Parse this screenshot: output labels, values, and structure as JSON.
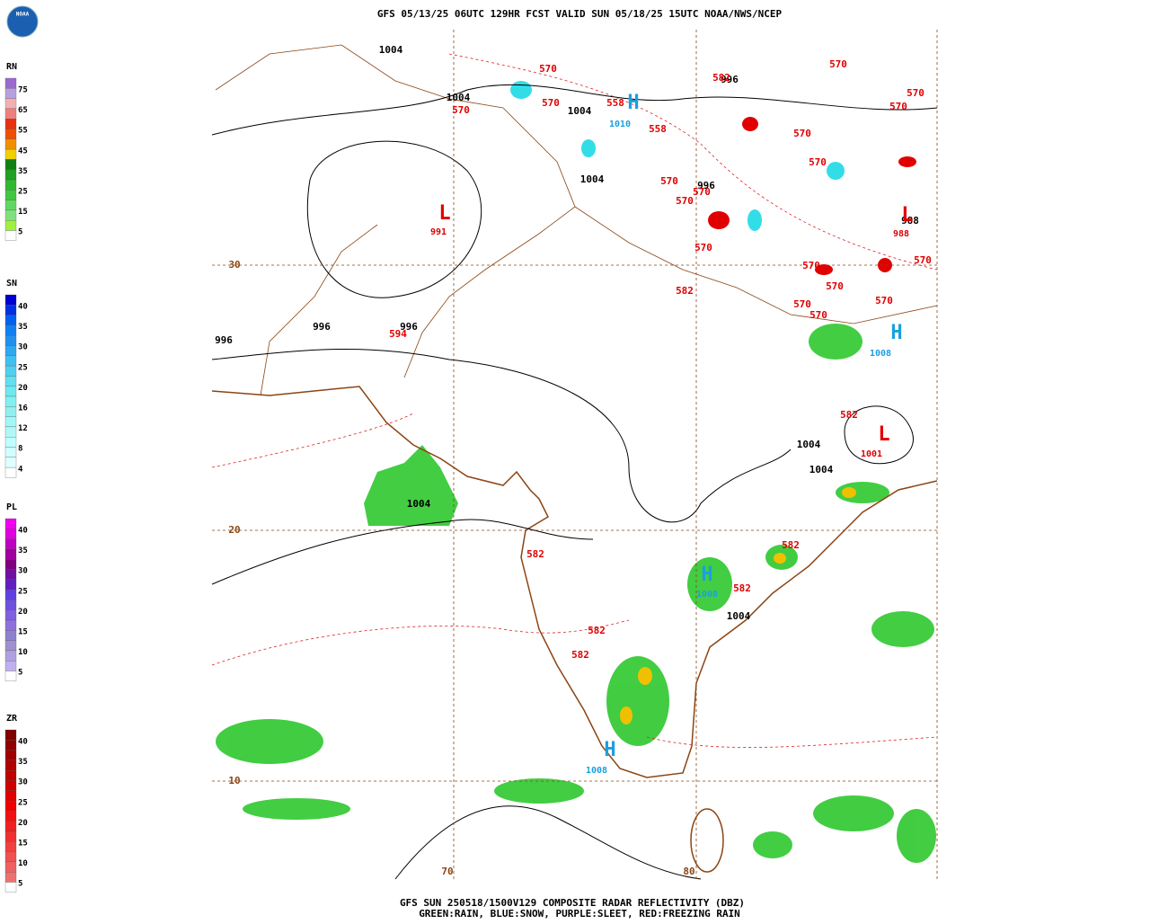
{
  "header": {
    "title": "GFS 05/13/25 06UTC 129HR FCST VALID SUN 05/18/25 15UTC NOAA/NWS/NCEP",
    "logo": "NOAA"
  },
  "footer": {
    "line1": "GFS SUN 250518/1500V129 COMPOSITE RADAR REFLECTIVITY (DBZ)",
    "line2": "GREEN:RAIN, BLUE:SNOW, PURPLE:SLEET, RED:FREEZING RAIN"
  },
  "legend": [
    {
      "title": "RN",
      "labels": [
        "75",
        "65",
        "55",
        "45",
        "35",
        "25",
        "15",
        "5"
      ]
    },
    {
      "title": "SN",
      "labels": [
        "40",
        "35",
        "30",
        "25",
        "20",
        "16",
        "12",
        "8",
        "4"
      ]
    },
    {
      "title": "PL",
      "labels": [
        "40",
        "35",
        "30",
        "25",
        "20",
        "15",
        "10",
        "5"
      ]
    },
    {
      "title": "ZR",
      "labels": [
        "40",
        "35",
        "30",
        "25",
        "20",
        "15",
        "10",
        "5"
      ]
    }
  ],
  "map": {
    "grid_labels": [
      "30",
      "20",
      "10",
      "70",
      "80"
    ],
    "isobar_labels": [
      "1004",
      "1004",
      "1004",
      "1004",
      "996",
      "996",
      "988",
      "996",
      "996",
      "996",
      "1004",
      "1004",
      "1004",
      "1004"
    ],
    "thickness_labels": [
      "570",
      "570",
      "570",
      "558",
      "558",
      "582",
      "570",
      "570",
      "570",
      "570",
      "570",
      "570",
      "570",
      "570",
      "570",
      "570",
      "570",
      "570",
      "570",
      "570",
      "570",
      "582",
      "594",
      "582",
      "582",
      "582",
      "582",
      "582",
      "582"
    ],
    "pressure_centers": [
      {
        "symbol": "L",
        "value": "991"
      },
      {
        "symbol": "L",
        "value": "988"
      },
      {
        "symbol": "L",
        "value": "1001"
      },
      {
        "symbol": "H",
        "value": "1010"
      },
      {
        "symbol": "H",
        "value": "1008"
      },
      {
        "symbol": "H",
        "value": "1008"
      },
      {
        "symbol": "H",
        "value": "1008"
      }
    ]
  }
}
